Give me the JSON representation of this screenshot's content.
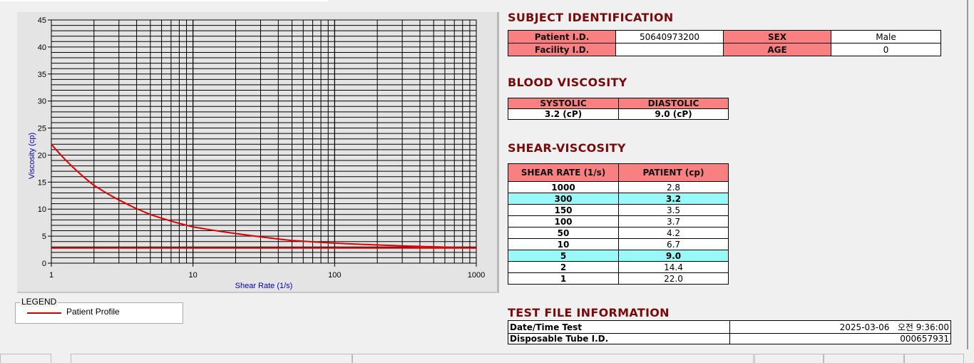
{
  "chart_data": {
    "type": "line",
    "xlabel": "Shear Rate (1/s)",
    "ylabel": "Viscosity (cp)",
    "xscale": "log",
    "xlim": [
      1,
      1000
    ],
    "ylim": [
      0,
      45
    ],
    "xticks": [
      "1",
      "10",
      "100",
      "1000"
    ],
    "yticks": [
      "0",
      "5",
      "10",
      "15",
      "20",
      "25",
      "30",
      "35",
      "40",
      "45"
    ],
    "grid": true,
    "legend_position": "bottom-left",
    "series": [
      {
        "name": "Patient Profile",
        "color": "#e00000",
        "x": [
          1,
          2,
          5,
          10,
          50,
          100,
          150,
          300,
          1000
        ],
        "y": [
          22.0,
          14.4,
          9.0,
          6.7,
          4.2,
          3.7,
          3.5,
          3.2,
          2.8
        ]
      },
      {
        "color": "#e00000",
        "x": [
          1,
          1000
        ],
        "y": [
          2.8,
          2.8
        ]
      }
    ]
  },
  "legend": {
    "title": "LEGEND",
    "items": [
      "Patient Profile"
    ]
  },
  "subject": {
    "title": "SUBJECT IDENTIFICATION",
    "patient_id_label": "Patient I.D.",
    "patient_id": "50640973200",
    "sex_label": "SEX",
    "sex": "Male",
    "facility_label": "Facility I.D.",
    "facility": "",
    "age_label": "AGE",
    "age": "0"
  },
  "blood": {
    "title": "BLOOD VISCOSITY",
    "systolic_label": "SYSTOLIC",
    "diastolic_label": "DIASTOLIC",
    "systolic": "3.2 (cP)",
    "diastolic": "9.0 (cP)"
  },
  "shear": {
    "title": "SHEAR-VISCOSITY",
    "col1": "SHEAR RATE (1/s)",
    "col2": "PATIENT (cp)",
    "rows": [
      [
        "1000",
        "2.8",
        false
      ],
      [
        "300",
        "3.2",
        true
      ],
      [
        "150",
        "3.5",
        false
      ],
      [
        "100",
        "3.7",
        false
      ],
      [
        "50",
        "4.2",
        false
      ],
      [
        "10",
        "6.7",
        false
      ],
      [
        "5",
        "9.0",
        true
      ],
      [
        "2",
        "14.4",
        false
      ],
      [
        "1",
        "22.0",
        false
      ]
    ],
    "highlight_color": "#99f8f8"
  },
  "testfile": {
    "title": "TEST FILE INFORMATION",
    "date_label": "Date/Time Test",
    "date": "2025-03-06   오전 9:36:00",
    "tube_label": "Disposable Tube I.D.",
    "tube": "000657931"
  }
}
